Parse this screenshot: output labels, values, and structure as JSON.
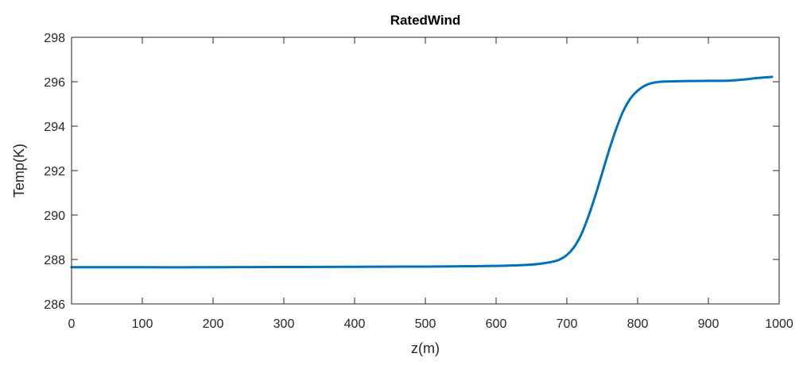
{
  "chart_data": {
    "type": "line",
    "title": "RatedWind",
    "xlabel": "z(m)",
    "ylabel": "Temp(K)",
    "xlim": [
      0,
      1000
    ],
    "ylim": [
      286,
      298
    ],
    "xticks": [
      0,
      100,
      200,
      300,
      400,
      500,
      600,
      700,
      800,
      900,
      1000
    ],
    "yticks": [
      286,
      288,
      290,
      292,
      294,
      296,
      298
    ],
    "xtick_labels": [
      "0",
      "100",
      "200",
      "300",
      "400",
      "500",
      "600",
      "700",
      "800",
      "900",
      "1000"
    ],
    "ytick_labels": [
      "286",
      "288",
      "290",
      "292",
      "294",
      "296",
      "298"
    ],
    "grid": false,
    "legend": "none",
    "series": [
      {
        "color": "#0072BD",
        "x": [
          0,
          100,
          200,
          300,
          400,
          500,
          550,
          600,
          640,
          660,
          680,
          690,
          700,
          710,
          720,
          730,
          740,
          750,
          760,
          770,
          780,
          790,
          800,
          810,
          820,
          830,
          840,
          850,
          870,
          900,
          930,
          950,
          970,
          990
        ],
        "y": [
          287.65,
          287.65,
          287.65,
          287.66,
          287.67,
          287.68,
          287.69,
          287.71,
          287.75,
          287.8,
          287.9,
          288.0,
          288.2,
          288.55,
          289.1,
          289.9,
          290.85,
          291.9,
          292.95,
          293.9,
          294.7,
          295.25,
          295.6,
          295.82,
          295.94,
          295.99,
          296.01,
          296.02,
          296.03,
          296.04,
          296.05,
          296.1,
          296.17,
          296.22
        ]
      }
    ]
  }
}
